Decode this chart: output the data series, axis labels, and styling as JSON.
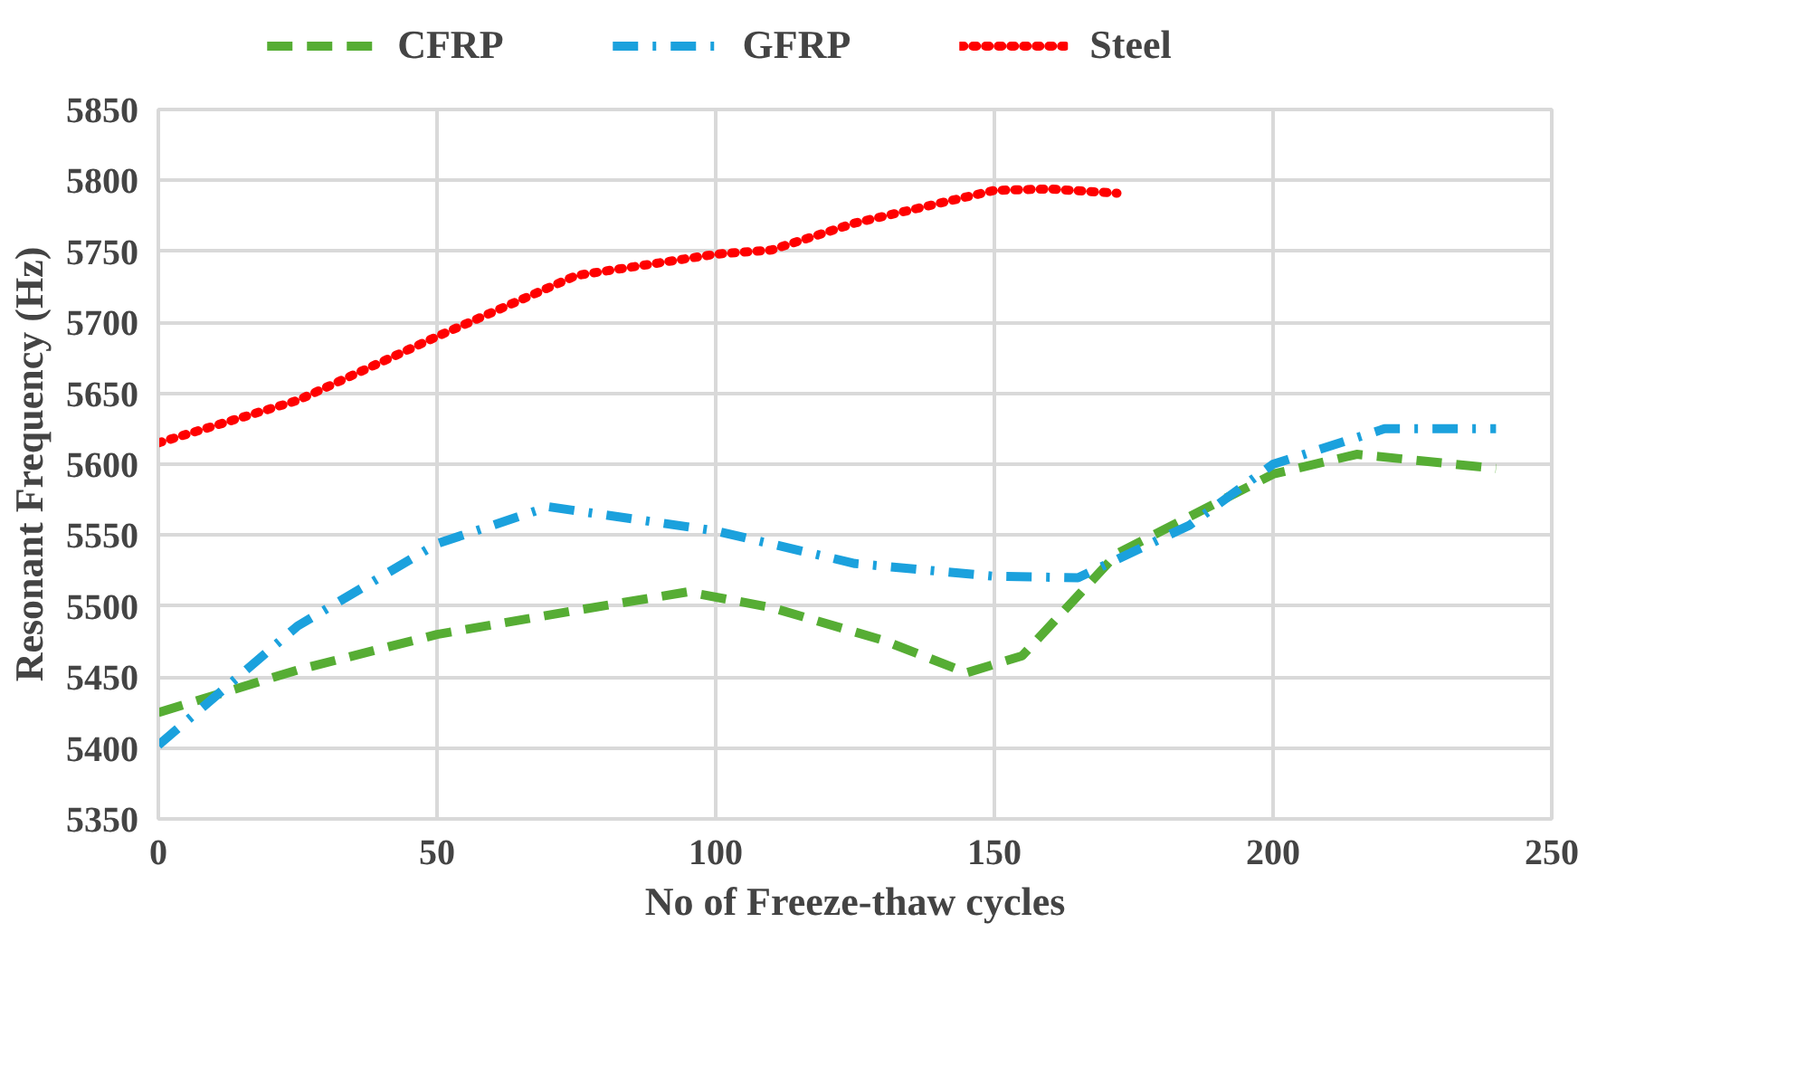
{
  "chart_data": {
    "type": "line",
    "xlabel": "No of Freeze-thaw cycles",
    "ylabel": "Resonant Frequency (Hz)",
    "xlim": [
      0,
      250
    ],
    "xticks": [
      0,
      50,
      100,
      150,
      200,
      250
    ],
    "ylim": [
      5350,
      5850
    ],
    "yticks": [
      5350,
      5400,
      5450,
      5500,
      5550,
      5600,
      5650,
      5700,
      5750,
      5800,
      5850
    ],
    "grid": true,
    "legend": "top",
    "marker": "none",
    "series": [
      {
        "name": "CFRP",
        "color": "#56ad34",
        "line_style": "dashed",
        "x": [
          0,
          25,
          50,
          75,
          95,
          110,
          130,
          145,
          155,
          172,
          200,
          215,
          240
        ],
        "values": [
          5425,
          5455,
          5480,
          5497,
          5510,
          5499,
          5476,
          5453,
          5465,
          5537,
          5593,
          5607,
          5597
        ]
      },
      {
        "name": "GFRP",
        "color": "#1ba1dd",
        "line_style": "dashdot",
        "x": [
          0,
          25,
          50,
          70,
          100,
          125,
          150,
          165,
          185,
          200,
          220,
          240
        ],
        "values": [
          5402,
          5486,
          5544,
          5570,
          5553,
          5530,
          5521,
          5520,
          5557,
          5600,
          5625,
          5625
        ]
      },
      {
        "name": "Steel",
        "color": "#ff0000",
        "line_style": "dotted",
        "x": [
          0,
          25,
          50,
          75,
          100,
          110,
          125,
          150,
          160,
          172
        ],
        "values": [
          5615,
          5645,
          5690,
          5733,
          5748,
          5751,
          5770,
          5793,
          5794,
          5791
        ]
      }
    ]
  }
}
